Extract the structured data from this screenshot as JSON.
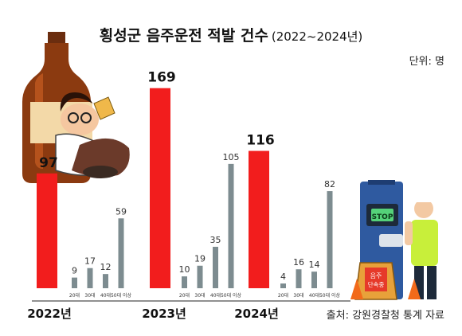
{
  "title": "횡성군 음주운전 적발 건수",
  "subtitle": "(2022~2024년)",
  "unit_label": "단위: 명",
  "source": "출처: 강원경찰청 통계 자료",
  "illustrations": {
    "drunk_man": "drunk man leaning on a large beer bottle",
    "officer": "traffic police officer beside a breathalyzer with a STOP sign",
    "breathalyzer_label": "STOP",
    "sign_text": [
      "음주",
      "단속중"
    ]
  },
  "chart_data": {
    "type": "bar",
    "title": "횡성군 음주운전 적발 건수",
    "unit": "명",
    "colors": {
      "total": "#f21d1d",
      "age": "#7d8c90"
    },
    "groups": [
      {
        "year": "2022년",
        "total": 97,
        "ages": [
          {
            "label": "20대",
            "value": 9
          },
          {
            "label": "30대",
            "value": 17
          },
          {
            "label": "40대",
            "value": 12
          },
          {
            "label": "50대 이상",
            "value": 59
          }
        ]
      },
      {
        "year": "2023년",
        "total": 169,
        "ages": [
          {
            "label": "20대",
            "value": 10
          },
          {
            "label": "30대",
            "value": 19
          },
          {
            "label": "40대",
            "value": 35
          },
          {
            "label": "50대 이상",
            "value": 105
          }
        ]
      },
      {
        "year": "2024년",
        "total": 116,
        "ages": [
          {
            "label": "20대",
            "value": 4
          },
          {
            "label": "30대",
            "value": 16
          },
          {
            "label": "40대",
            "value": 14
          },
          {
            "label": "50대 이상",
            "value": 82
          }
        ]
      }
    ]
  }
}
